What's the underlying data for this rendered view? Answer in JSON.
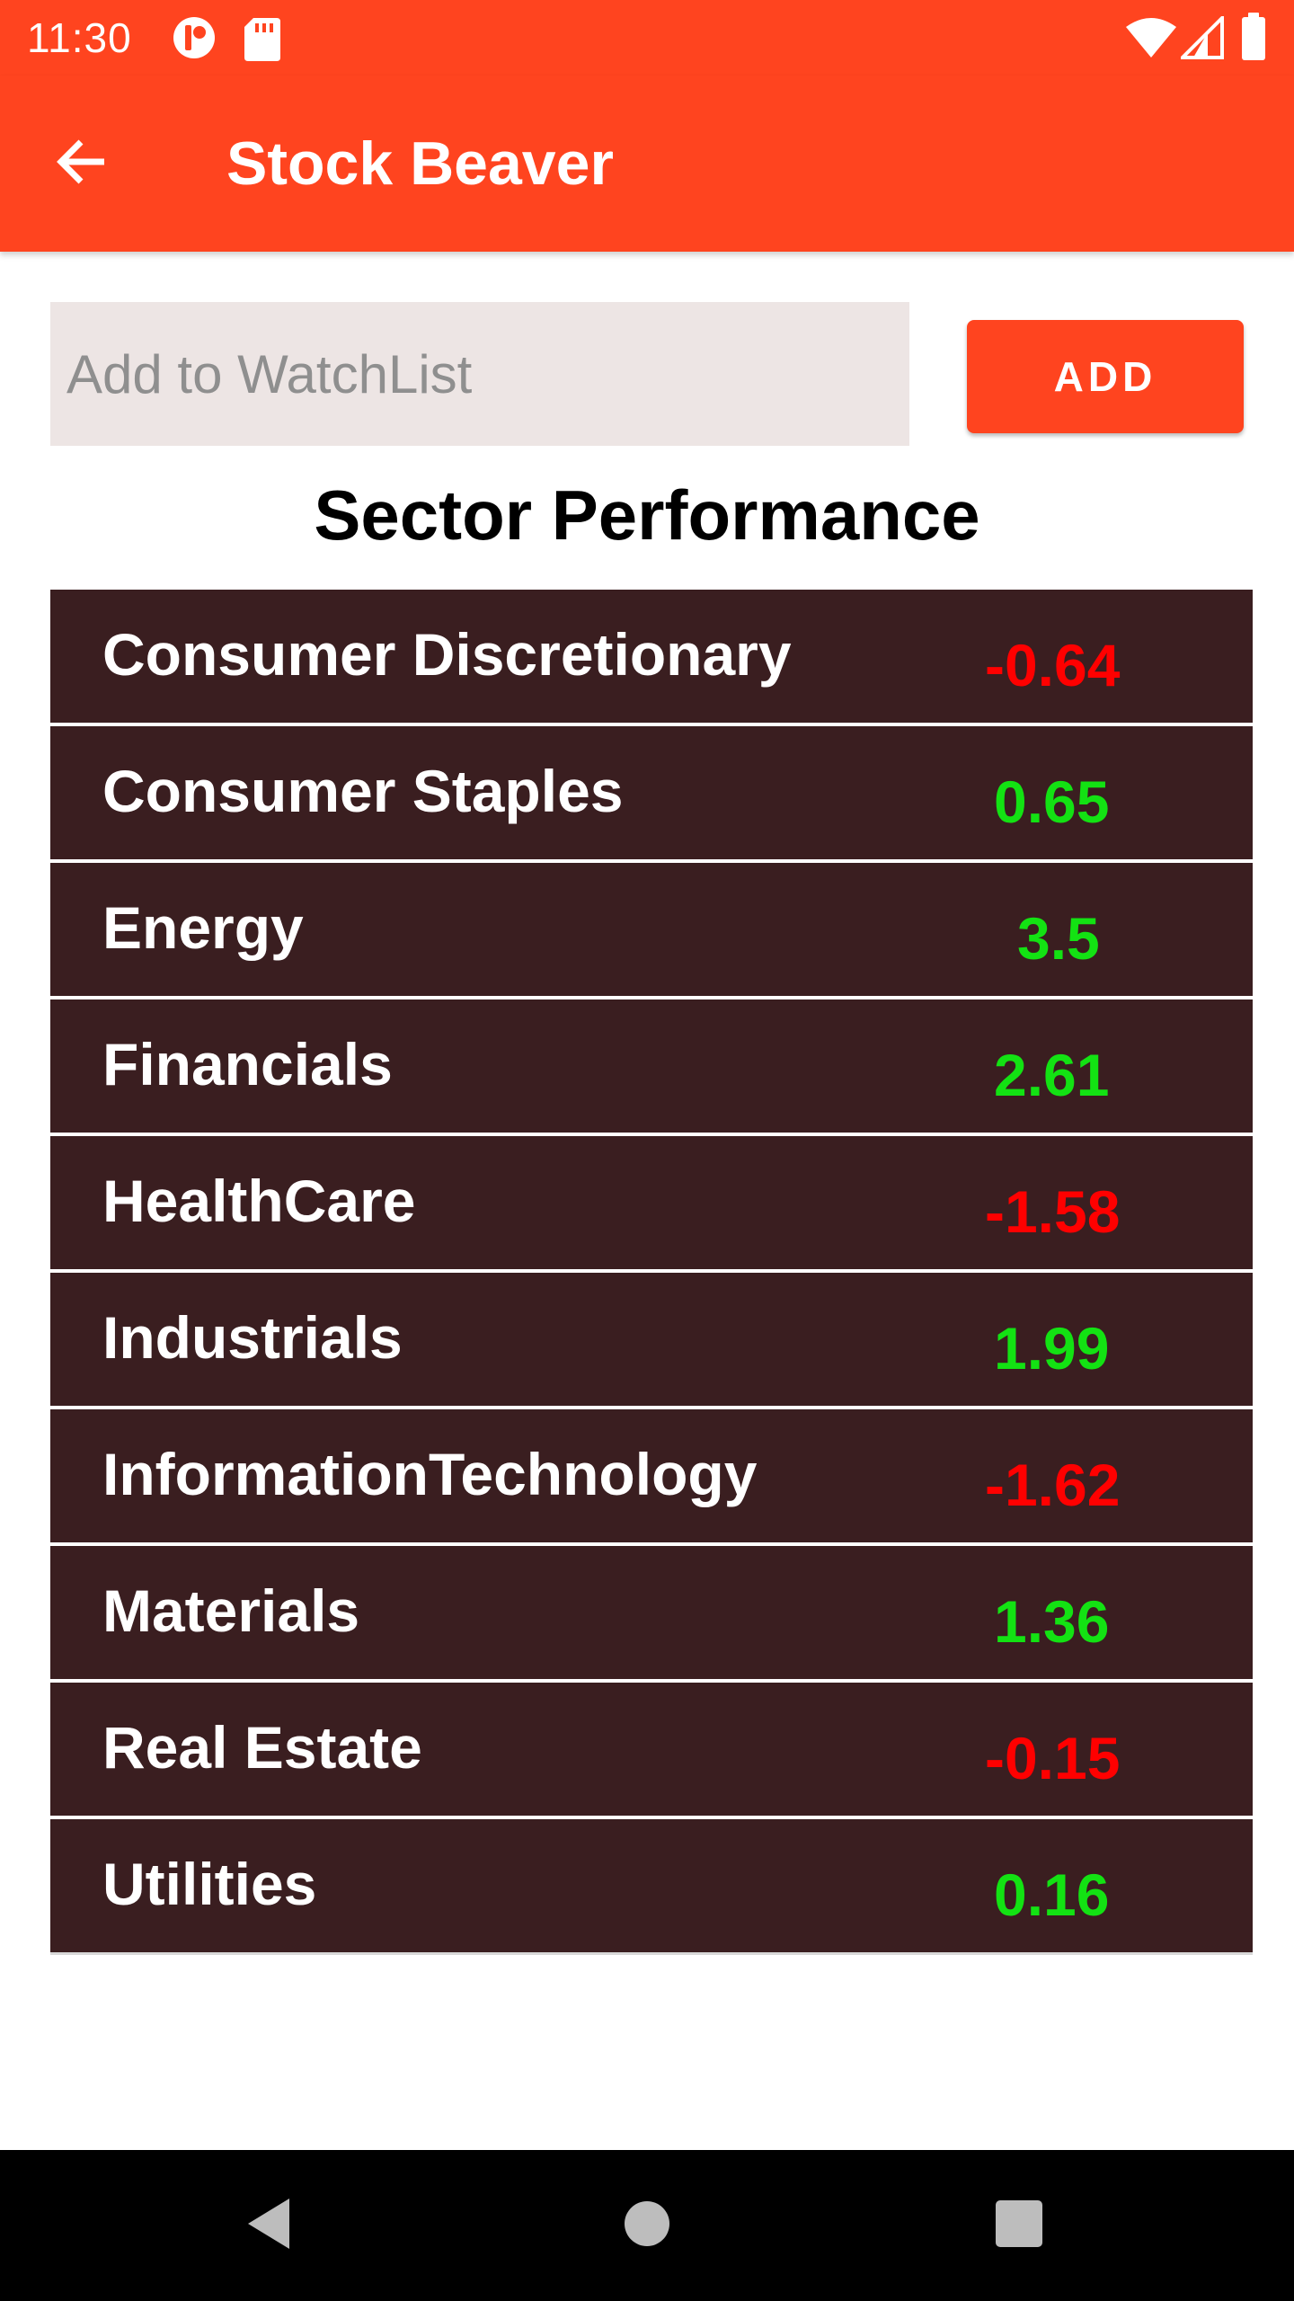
{
  "status_bar": {
    "time": "11:30"
  },
  "app_bar": {
    "title": "Stock Beaver"
  },
  "watchlist": {
    "placeholder": "Add to WatchList",
    "value": "",
    "add_label": "ADD"
  },
  "section": {
    "title": "Sector Performance"
  },
  "colors": {
    "accent": "#ff441f",
    "row_background": "#3a1e20",
    "positive": "#13e213",
    "negative": "#ff0000"
  },
  "sectors": [
    {
      "name": "Consumer Discretionary",
      "value": "-0.64",
      "direction": "negative"
    },
    {
      "name": "Consumer Staples",
      "value": "0.65",
      "direction": "positive"
    },
    {
      "name": "Energy",
      "value": "3.5",
      "direction": "positive"
    },
    {
      "name": "Financials",
      "value": "2.61",
      "direction": "positive"
    },
    {
      "name": "HealthCare",
      "value": "-1.58",
      "direction": "negative"
    },
    {
      "name": "Industrials",
      "value": "1.99",
      "direction": "positive"
    },
    {
      "name": "InformationTechnology",
      "value": "-1.62",
      "direction": "negative"
    },
    {
      "name": "Materials",
      "value": "1.36",
      "direction": "positive"
    },
    {
      "name": "Real Estate",
      "value": "-0.15",
      "direction": "negative"
    },
    {
      "name": "Utilities",
      "value": "0.16",
      "direction": "positive"
    }
  ],
  "icons": {
    "back": "arrow-back-icon",
    "status": [
      "notification-app-icon",
      "sd-card-icon",
      "wifi-icon",
      "cell-signal-icon",
      "battery-icon"
    ],
    "nav": [
      "nav-back-icon",
      "nav-home-icon",
      "nav-recents-icon"
    ]
  }
}
